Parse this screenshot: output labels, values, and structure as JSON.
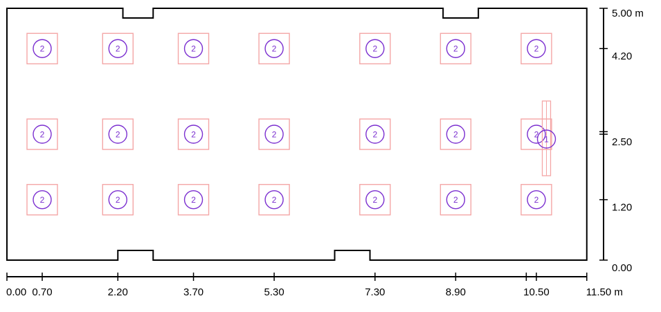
{
  "room": {
    "width_m": 11.5,
    "depth_m": 5.0,
    "top_niches": [
      [
        2.3,
        2.9
      ],
      [
        8.65,
        9.35
      ]
    ],
    "bottom_niches": [
      [
        2.2,
        2.9
      ],
      [
        6.5,
        7.2
      ]
    ]
  },
  "x_axis": {
    "unit": "m",
    "labels": [
      {
        "value": 0.0,
        "text": "0.00"
      },
      {
        "value": 0.7,
        "text": "0.70"
      },
      {
        "value": 2.2,
        "text": "2.20"
      },
      {
        "value": 3.7,
        "text": "3.70"
      },
      {
        "value": 5.3,
        "text": "5.30"
      },
      {
        "value": 7.3,
        "text": "7.30"
      },
      {
        "value": 8.9,
        "text": "8.90"
      },
      {
        "value": 10.5,
        "text": "10.50"
      },
      {
        "value": 11.5,
        "text": "11.50 m"
      }
    ],
    "extra_ticks": [
      10.3
    ]
  },
  "y_axis": {
    "unit": "m",
    "labels": [
      {
        "value": 0.0,
        "text": "0.00"
      },
      {
        "value": 1.2,
        "text": "1.20"
      },
      {
        "value": 2.5,
        "text": "2.50"
      },
      {
        "value": 4.2,
        "text": "4.20"
      },
      {
        "value": 5.0,
        "text": "5.00 m"
      }
    ],
    "extra_ticks": [
      2.55
    ]
  },
  "luminaires": {
    "label": "2",
    "columns_m": [
      0.7,
      2.2,
      3.7,
      5.3,
      7.3,
      8.9,
      10.5
    ],
    "rows_m": [
      1.2,
      2.5,
      4.2
    ]
  },
  "extra_fixture": {
    "label": "1",
    "x_m": 10.7,
    "y_m": 2.5
  },
  "colors": {
    "wall": "#000000",
    "luminaire_box": "#f4a6a6",
    "luminaire_circle": "#7b2fd0"
  }
}
